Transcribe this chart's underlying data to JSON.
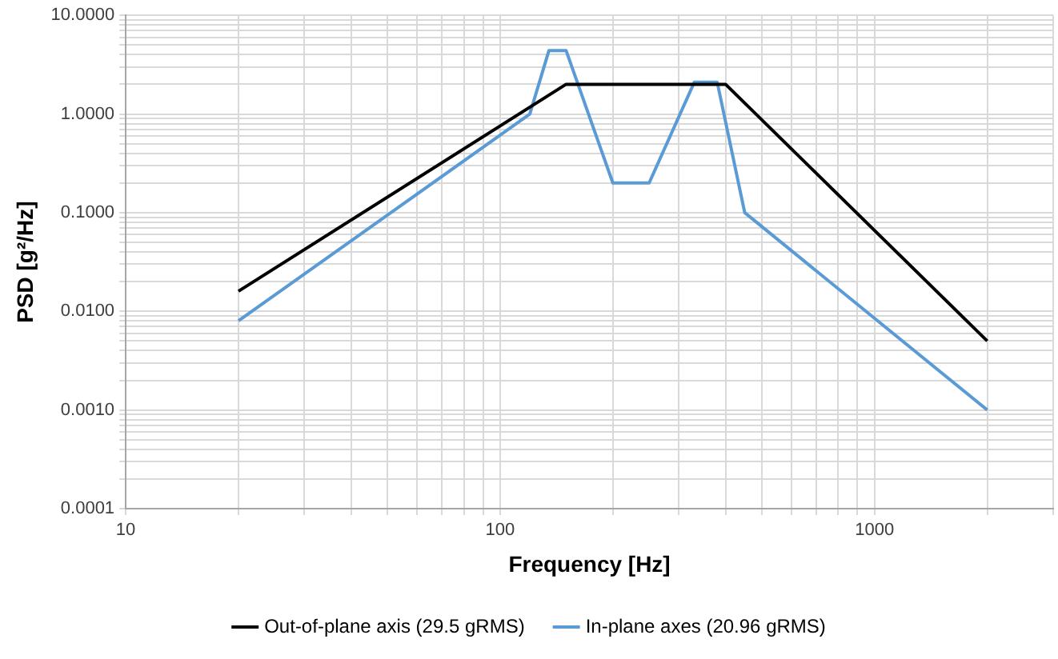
{
  "chart_data": {
    "type": "line",
    "xlabel": "Frequency [Hz]",
    "ylabel": "PSD [g²/Hz]",
    "log": "xy",
    "grid": true,
    "legend": "bottom",
    "xlim": [
      10,
      3000
    ],
    "xticks": [
      {
        "value": 10,
        "label": "10"
      },
      {
        "value": 20,
        "label": null
      },
      {
        "value": 30,
        "label": null
      },
      {
        "value": 40,
        "label": null
      },
      {
        "value": 50,
        "label": null
      },
      {
        "value": 60,
        "label": null
      },
      {
        "value": 70,
        "label": null
      },
      {
        "value": 80,
        "label": null
      },
      {
        "value": 90,
        "label": null
      },
      {
        "value": 100,
        "label": "100"
      },
      {
        "value": 200,
        "label": null
      },
      {
        "value": 300,
        "label": null
      },
      {
        "value": 400,
        "label": null
      },
      {
        "value": 500,
        "label": null
      },
      {
        "value": 600,
        "label": null
      },
      {
        "value": 700,
        "label": null
      },
      {
        "value": 800,
        "label": null
      },
      {
        "value": 900,
        "label": null
      },
      {
        "value": 1000,
        "label": "1000"
      },
      {
        "value": 2000,
        "label": null
      },
      {
        "value": 3000,
        "label": null
      }
    ],
    "ylim": [
      0.0001,
      10
    ],
    "yticks": [
      {
        "value": 0.0001,
        "label": "0.0001"
      },
      {
        "value": 0.0002,
        "label": null
      },
      {
        "value": 0.0003,
        "label": null
      },
      {
        "value": 0.0004,
        "label": null
      },
      {
        "value": 0.0005,
        "label": null
      },
      {
        "value": 0.0006,
        "label": null
      },
      {
        "value": 0.0007,
        "label": null
      },
      {
        "value": 0.0008,
        "label": null
      },
      {
        "value": 0.0009,
        "label": null
      },
      {
        "value": 0.001,
        "label": "0.0010"
      },
      {
        "value": 0.002,
        "label": null
      },
      {
        "value": 0.003,
        "label": null
      },
      {
        "value": 0.004,
        "label": null
      },
      {
        "value": 0.005,
        "label": null
      },
      {
        "value": 0.006,
        "label": null
      },
      {
        "value": 0.007,
        "label": null
      },
      {
        "value": 0.008,
        "label": null
      },
      {
        "value": 0.009,
        "label": null
      },
      {
        "value": 0.01,
        "label": "0.0100"
      },
      {
        "value": 0.02,
        "label": null
      },
      {
        "value": 0.03,
        "label": null
      },
      {
        "value": 0.04,
        "label": null
      },
      {
        "value": 0.05,
        "label": null
      },
      {
        "value": 0.06,
        "label": null
      },
      {
        "value": 0.07,
        "label": null
      },
      {
        "value": 0.08,
        "label": null
      },
      {
        "value": 0.09,
        "label": null
      },
      {
        "value": 0.1,
        "label": "0.1000"
      },
      {
        "value": 0.2,
        "label": null
      },
      {
        "value": 0.3,
        "label": null
      },
      {
        "value": 0.4,
        "label": null
      },
      {
        "value": 0.5,
        "label": null
      },
      {
        "value": 0.6,
        "label": null
      },
      {
        "value": 0.7,
        "label": null
      },
      {
        "value": 0.8,
        "label": null
      },
      {
        "value": 0.9,
        "label": null
      },
      {
        "value": 1,
        "label": "1.0000"
      },
      {
        "value": 2,
        "label": null
      },
      {
        "value": 3,
        "label": null
      },
      {
        "value": 4,
        "label": null
      },
      {
        "value": 5,
        "label": null
      },
      {
        "value": 6,
        "label": null
      },
      {
        "value": 7,
        "label": null
      },
      {
        "value": 8,
        "label": null
      },
      {
        "value": 9,
        "label": null
      },
      {
        "value": 10,
        "label": "10.0000"
      }
    ],
    "series": [
      {
        "name": "Out-of-plane axis (29.5 gRMS)",
        "color": "#000000",
        "x": [
          20,
          150,
          400,
          2000
        ],
        "values": [
          0.016,
          2,
          2,
          0.005
        ]
      },
      {
        "name": "In-plane axes (20.96 gRMS)",
        "color": "#5b9bd5",
        "x": [
          20,
          120,
          135,
          150,
          200,
          250,
          330,
          380,
          450,
          2000
        ],
        "values": [
          0.008,
          1,
          4.4,
          4.4,
          0.2,
          0.2,
          2.1,
          2.1,
          0.1,
          0.001
        ]
      }
    ]
  }
}
